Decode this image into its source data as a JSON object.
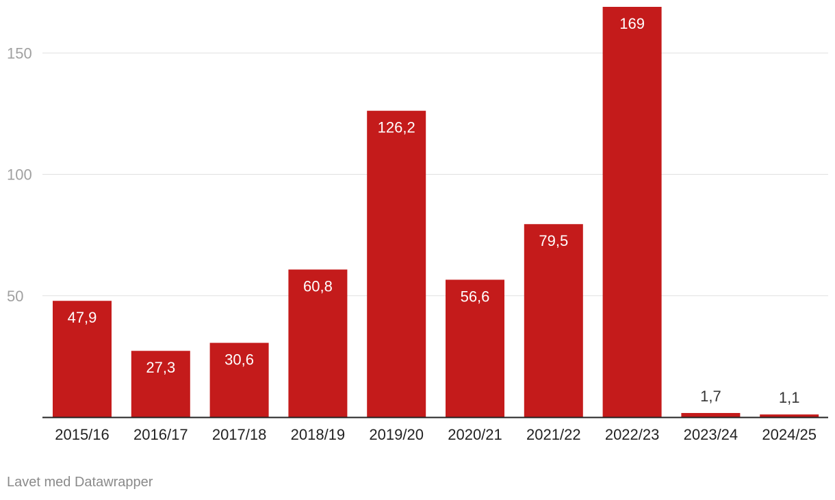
{
  "chart_data": {
    "type": "bar",
    "categories": [
      "2015/16",
      "2016/17",
      "2017/18",
      "2018/19",
      "2019/20",
      "2020/21",
      "2021/22",
      "2022/23",
      "2023/24",
      "2024/25"
    ],
    "values": [
      47.9,
      27.3,
      30.6,
      60.8,
      126.2,
      56.6,
      79.5,
      169,
      1.7,
      1.1
    ],
    "value_labels": [
      "47,9",
      "27,3",
      "30,6",
      "60,8",
      "126,2",
      "56,6",
      "79,5",
      "169",
      "1,7",
      "1,1"
    ],
    "yticks": [
      50,
      100,
      150
    ],
    "ytick_labels": [
      "50",
      "100",
      "150"
    ],
    "ylim": [
      0,
      169
    ],
    "grid": true,
    "colors": {
      "bar": "#c41b1b",
      "grid": "#e0e0e0",
      "axis": "#222222",
      "label_inside": "#ffffff",
      "label_outside": "#333333"
    }
  },
  "footer": {
    "credit": "Lavet med Datawrapper"
  }
}
